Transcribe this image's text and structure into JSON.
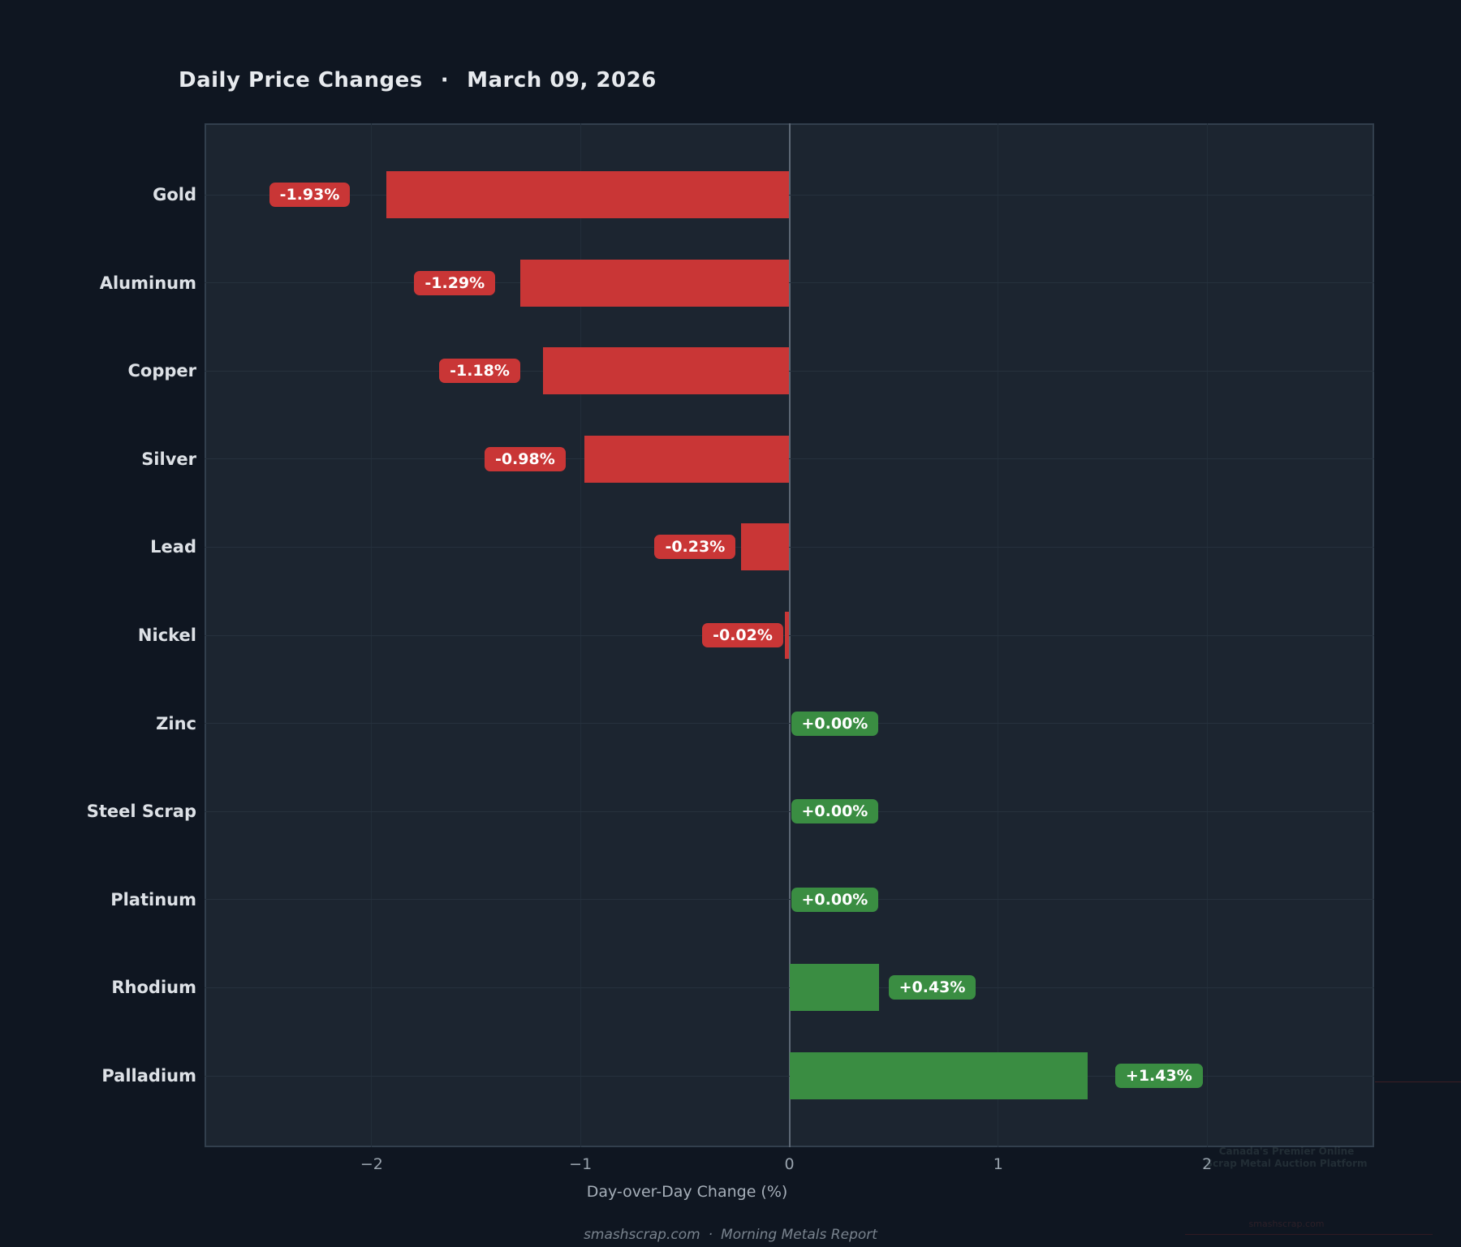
{
  "title": {
    "main": "Daily Price Changes",
    "separator": "·",
    "date": "March 09, 2026"
  },
  "chart_data": {
    "type": "bar",
    "orientation": "horizontal",
    "title": "Daily Price Changes · March 09, 2026",
    "categories": [
      "Gold",
      "Aluminum",
      "Copper",
      "Silver",
      "Lead",
      "Nickel",
      "Zinc",
      "Steel Scrap",
      "Platinum",
      "Rhodium",
      "Palladium"
    ],
    "values": [
      -1.93,
      -1.29,
      -1.18,
      -0.98,
      -0.23,
      -0.02,
      0.0,
      0.0,
      0.0,
      0.43,
      1.43
    ],
    "value_labels": [
      "-1.93%",
      "-1.29%",
      "-1.18%",
      "-0.98%",
      "-0.23%",
      "-0.02%",
      "+0.00%",
      "+0.00%",
      "+0.00%",
      "+0.43%",
      "+1.43%"
    ],
    "xlabel": "Day-over-Day Change (%)",
    "xtick_values": [
      -2,
      -1,
      0,
      1,
      2
    ],
    "xtick_labels": [
      "−2",
      "−1",
      "0",
      "1",
      "2"
    ],
    "xlim": [
      -2.8,
      2.8
    ],
    "grid": true,
    "zero_line": true,
    "legend": null,
    "colors": {
      "negative": "#c93636",
      "positive": "#3a8d42",
      "plot_background": "#1c2530",
      "page_background": "#0f1621",
      "zero_line": "#5d6875",
      "grid_line": "#26313d"
    }
  },
  "footer": {
    "site": "smashscrap.com",
    "separator": "·",
    "report": "Morning Metals Report"
  },
  "watermark": {
    "line1": "Canada's Premier Online",
    "line2": "Scrap Metal Auction Platform",
    "url": "smashscrap.com"
  }
}
